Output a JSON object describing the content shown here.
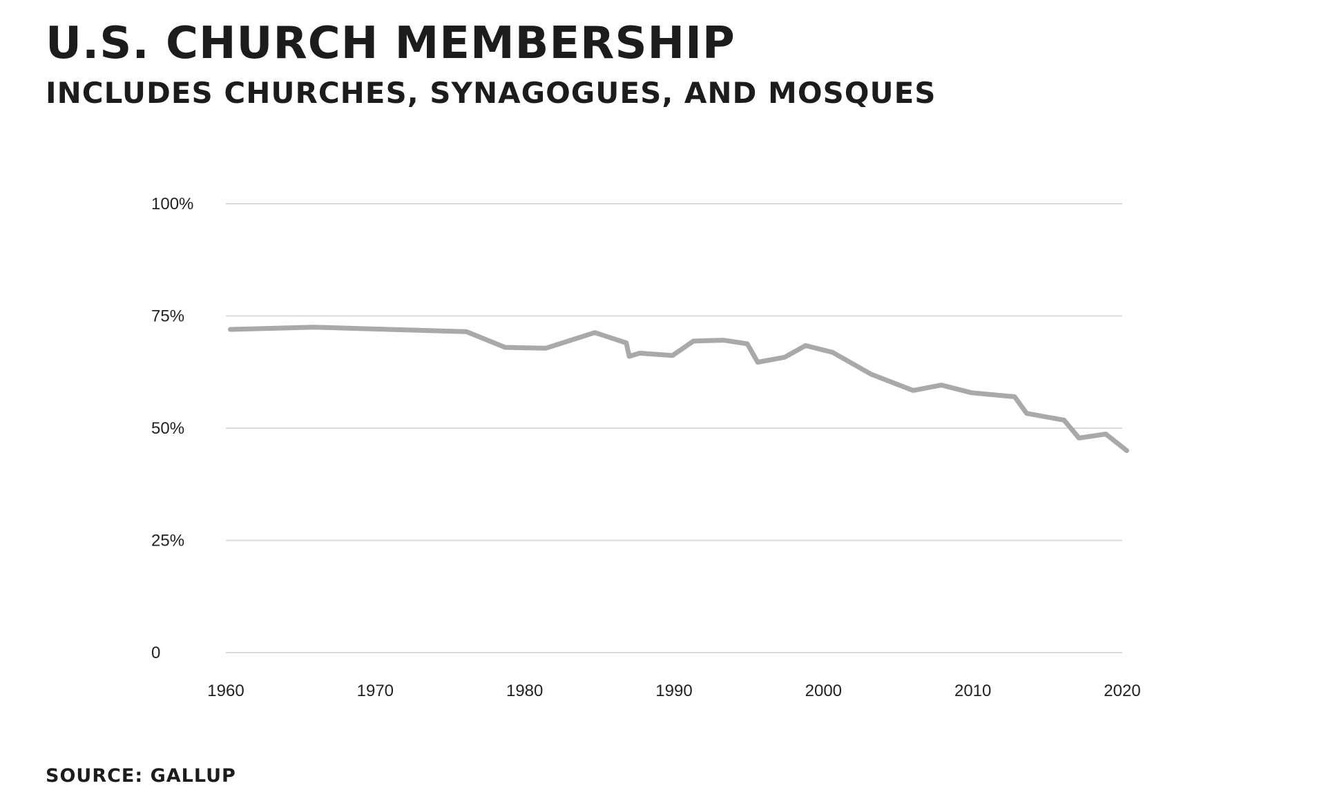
{
  "chart_data": {
    "type": "line",
    "title": "U.S. CHURCH MEMBERSHIP",
    "subtitle": "INCLUDES CHURCHES, SYNAGOGUES, AND MOSQUES",
    "source": "SOURCE: GALLUP",
    "xlabel": "",
    "ylabel": "",
    "xlim": [
      1960,
      2020
    ],
    "ylim": [
      0,
      100
    ],
    "x_ticks": [
      1960,
      1970,
      1980,
      1990,
      2000,
      2010,
      2020
    ],
    "x_tick_labels": [
      "1960",
      "1970",
      "1980",
      "1990",
      "2000",
      "2010",
      "2020"
    ],
    "y_ticks": [
      0,
      25,
      50,
      75,
      100
    ],
    "y_tick_labels": [
      "0",
      "25%",
      "50%",
      "75%",
      "100%"
    ],
    "grid": true,
    "legend": "none",
    "line_color": "#a9a9a9",
    "grid_color": "#d9d9d9",
    "series": [
      {
        "x": [
          1960.3,
          1965.9,
          1976.1,
          1978.7,
          1981.4,
          1984.7,
          1986.8,
          1987.0,
          1987.7,
          1989.9,
          1991.3,
          1993.3,
          1994.9,
          1995.6,
          1997.4,
          1998.8,
          2000.6,
          2003.2,
          2006.0,
          2007.9,
          2009.9,
          2012.8,
          2013.6,
          2016.1,
          2017.1,
          2018.9,
          2020.3
        ],
        "values": [
          72,
          72.5,
          71.5,
          68,
          67.8,
          71.3,
          69,
          66,
          66.7,
          66.2,
          69.4,
          69.6,
          68.8,
          64.7,
          65.8,
          68.4,
          66.9,
          62,
          58.4,
          59.6,
          57.9,
          57,
          53.3,
          51.8,
          47.8,
          48.7,
          45
        ]
      }
    ]
  }
}
